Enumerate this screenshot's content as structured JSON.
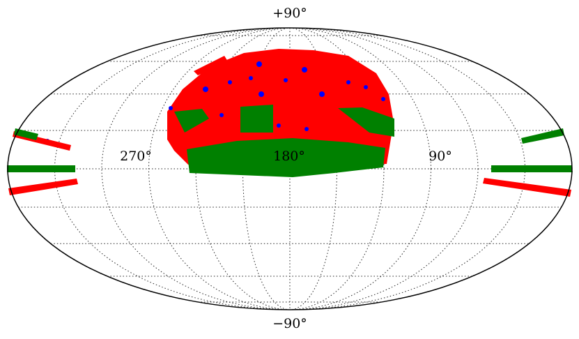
{
  "labels": {
    "north": "+90°",
    "south": "−90°",
    "lon_270": "270°",
    "lon_180": "180°",
    "lon_90": "90°"
  }
}
